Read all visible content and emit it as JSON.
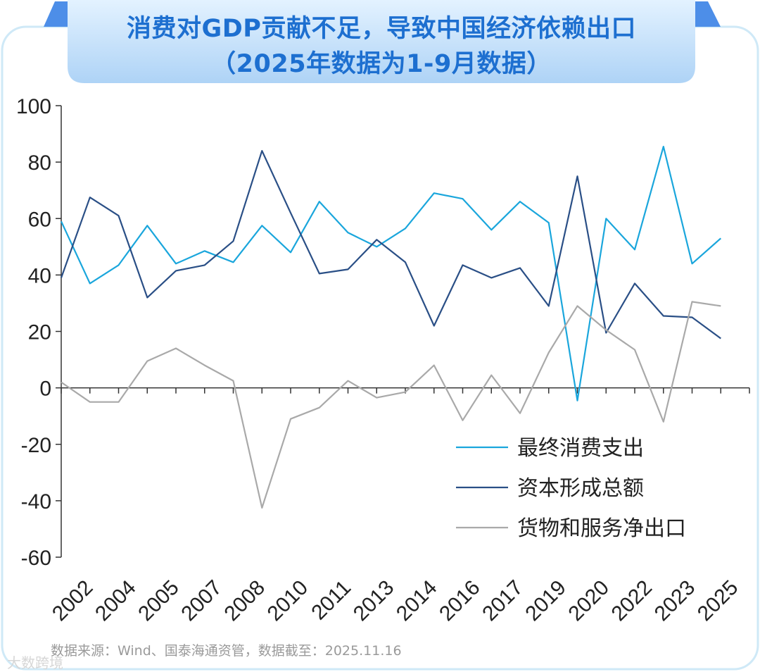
{
  "title_line1": "消费对GDP贡献不足，导致中国经济依赖出口",
  "title_line2": "（2025年数据为1-9月数据）",
  "source_note": "数据来源：Wind、国泰海通资管，数据截至：2025.11.16",
  "watermark": "大数跨境",
  "colors": {
    "frame": "#cfe9f7",
    "banner_top": "#dcefff",
    "banner_bottom": "#b2d6f7",
    "title": "#1d6fd0",
    "consumption": "#1aa6dc",
    "capital": "#2a4f86",
    "net_export": "#a9a9a9",
    "axis": "#333333"
  },
  "chart_data": {
    "type": "line",
    "title": "消费对GDP贡献不足，导致中国经济依赖出口（2025年数据为1-9月数据）",
    "xlabel": "",
    "ylabel": "",
    "ylim": [
      -60,
      100
    ],
    "yticks": [
      "100",
      "80",
      "60",
      "40",
      "20",
      "0",
      "-20",
      "-40",
      "-60"
    ],
    "xtick_labels": [
      "2002",
      "2004",
      "2005",
      "2007",
      "2008",
      "2010",
      "2011",
      "2013",
      "2014",
      "2016",
      "2017",
      "2019",
      "2020",
      "2022",
      "2023",
      "2025"
    ],
    "legend_position": "bottom-right",
    "grid": false,
    "series": [
      {
        "name": "最终消费支出",
        "color": "#1aa6dc",
        "values": [
          59,
          37,
          43.5,
          57.5,
          44,
          48.5,
          44.5,
          57.5,
          48,
          66,
          55,
          50,
          56.5,
          69,
          67,
          56,
          66,
          58.5,
          -4.5,
          60,
          49,
          85.5,
          44,
          53
        ]
      },
      {
        "name": "资本形成总额",
        "color": "#2a4f86",
        "values": [
          39,
          67.5,
          61,
          32,
          41.5,
          43.5,
          52,
          84,
          62,
          40.5,
          42,
          52.5,
          44.5,
          22,
          43.5,
          39,
          42.5,
          29,
          75,
          19.5,
          37,
          25.5,
          25,
          17.5
        ]
      },
      {
        "name": "货物和服务净出口",
        "color": "#a9a9a9",
        "values": [
          2,
          -5,
          -5,
          9.5,
          14,
          8,
          2.5,
          -42.5,
          -11,
          -7,
          2.5,
          -3.5,
          -1.5,
          8,
          -11.5,
          4.5,
          -9,
          12.5,
          29,
          20.5,
          13.5,
          -12,
          30.5,
          29
        ]
      }
    ]
  }
}
